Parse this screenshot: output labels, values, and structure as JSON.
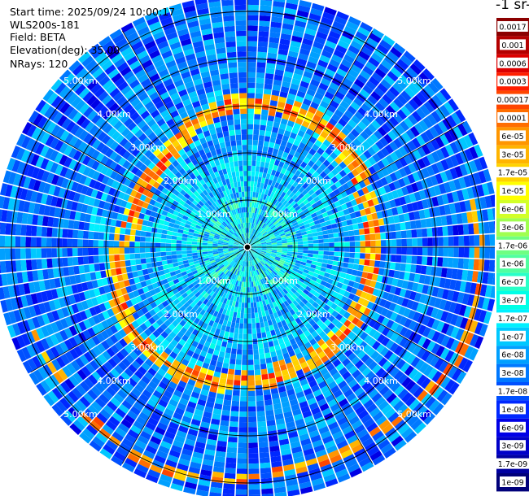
{
  "header": {
    "start_time": "Start time: 2025/09/24 10:00:17",
    "instrument": "WLS200s-181",
    "field": "Field: BETA",
    "elevation": "Elevation(deg): 35.00",
    "nrays": "NRays: 120"
  },
  "colorbar": {
    "title": "-1 sr-",
    "labels": [
      "0.0017",
      "0.001",
      "0.0006",
      "0.0003",
      "0.00017",
      "0.0001",
      "6e-05",
      "3e-05",
      "1.7e-05",
      "1e-05",
      "6e-06",
      "3e-06",
      "1.7e-06",
      "1e-06",
      "6e-07",
      "3e-07",
      "1.7e-07",
      "1e-07",
      "6e-08",
      "3e-08",
      "1.7e-08",
      "1e-08",
      "6e-09",
      "3e-09",
      "1.7e-09",
      "1e-09"
    ],
    "colors": [
      "#8b0000",
      "#b40000",
      "#dc0000",
      "#ff1e00",
      "#ff4600",
      "#ff6e00",
      "#ff9600",
      "#ffb400",
      "#ffd200",
      "#ffff00",
      "#d2ff28",
      "#a0ff50",
      "#6eff82",
      "#50ffa0",
      "#28ffc8",
      "#00ffe6",
      "#00f0ff",
      "#00c8ff",
      "#00a0ff",
      "#0078ff",
      "#0050ff",
      "#0028ff",
      "#0000e6",
      "#0000c8",
      "#0000a0",
      "#00007a"
    ]
  },
  "chart_data": {
    "type": "heatmap",
    "projection": "polar",
    "field": "BETA",
    "nrays": 120,
    "range_unit": "km",
    "range_rings_km": [
      1,
      2,
      3,
      4,
      5
    ],
    "ring_labels": [
      "1.00km",
      "2.00km",
      "3.00km",
      "4.00km",
      "5.00km"
    ],
    "max_range_km": 5.3,
    "spoke_angles_deg": [
      0,
      30,
      60,
      90,
      120,
      150,
      180,
      210,
      240,
      270,
      300,
      330
    ],
    "colorscale": "log",
    "colorscale_range": [
      1e-09,
      0.0017
    ],
    "features": [
      {
        "description_value": "strong aerosol ring",
        "range_km": 2.8,
        "value": 0.0003
      },
      {
        "description_value": "outer band",
        "range_km": 4.9,
        "value": 0.00017
      },
      {
        "description_value": "near range background",
        "range_km": 1.0,
        "value": 1.7e-07
      },
      {
        "description_value": "far range background",
        "range_km": 4.5,
        "value": 3e-08
      }
    ]
  }
}
